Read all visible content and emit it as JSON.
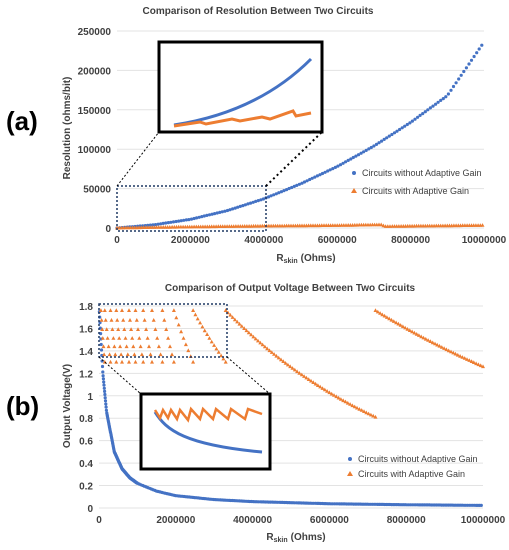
{
  "chart_data": [
    {
      "panel_label": "(a)",
      "type": "scatter",
      "title": "Comparison of Resolution Between Two Circuits",
      "ylabel": "Resolution (ohms/bit)",
      "xlabel_main": "R",
      "xlabel_sub": "skin",
      "xlabel_unit": "(Ohms)",
      "xlim": [
        0,
        10000000
      ],
      "ylim": [
        0,
        250000
      ],
      "xticks": [
        0,
        2000000,
        4000000,
        6000000,
        8000000,
        10000000
      ],
      "yticks": [
        0,
        50000,
        100000,
        150000,
        200000,
        250000
      ],
      "xtick_labels": [
        "0",
        "2000000",
        "4000000",
        "6000000",
        "8000000",
        "10000000"
      ],
      "ytick_labels": [
        "0",
        "50000",
        "100000",
        "150000",
        "200000",
        "250000"
      ],
      "zoom_region": {
        "x": [
          0,
          4000000
        ],
        "y": [
          0,
          50000
        ]
      },
      "legend_position": "right",
      "series": [
        {
          "name": "Circuits without Adaptive Gain",
          "color": "#4472C4",
          "marker": "circle",
          "x": [
            0,
            1000000,
            2000000,
            3000000,
            4000000,
            5000000,
            6000000,
            7000000,
            8000000,
            9000000,
            10000000
          ],
          "y": [
            0,
            4000,
            11000,
            22000,
            37000,
            56000,
            78000,
            104000,
            134000,
            168000,
            236000
          ]
        },
        {
          "name": "Circuits with Adaptive Gain",
          "color": "#ED7D31",
          "marker": "triangle",
          "x": [
            0,
            1000000,
            2000000,
            3000000,
            4000000,
            5000000,
            6000000,
            7200000,
            7300000,
            8000000,
            9000000,
            10000000
          ],
          "y": [
            0,
            800,
            1400,
            2000,
            2500,
            2900,
            3300,
            4200,
            2000,
            2400,
            2900,
            3400
          ]
        }
      ]
    },
    {
      "panel_label": "(b)",
      "type": "scatter",
      "title": "Comparison of Output Voltage Between Two Circuits",
      "ylabel": "Output Voltage(V)",
      "xlabel_main": "R",
      "xlabel_sub": "skin",
      "xlabel_unit": "(Ohms)",
      "xlim": [
        0,
        10000000
      ],
      "ylim": [
        0,
        1.8
      ],
      "xticks": [
        0,
        2000000,
        4000000,
        6000000,
        8000000,
        10000000
      ],
      "yticks": [
        0,
        0.2,
        0.4,
        0.6,
        0.8,
        1,
        1.2,
        1.4,
        1.6,
        1.8
      ],
      "xtick_labels": [
        "0",
        "2000000",
        "4000000",
        "6000000",
        "8000000",
        "10000000"
      ],
      "ytick_labels": [
        "0",
        "0.2",
        "0.4",
        "0.6",
        "0.8",
        "1",
        "1.2",
        "1.4",
        "1.6",
        "1.8"
      ],
      "zoom_region": {
        "x": [
          0,
          3300000
        ],
        "y": [
          1.34,
          1.82
        ]
      },
      "legend_position": "bottom-right",
      "series": [
        {
          "name": "Circuits without Adaptive Gain",
          "color": "#4472C4",
          "marker": "circle",
          "x": [
            10000,
            100000,
            200000,
            400000,
            600000,
            800000,
            1000000,
            1500000,
            2000000,
            3000000,
            4000000,
            6000000,
            8000000,
            10000000
          ],
          "y": [
            1.75,
            1.2,
            0.85,
            0.5,
            0.35,
            0.27,
            0.22,
            0.15,
            0.11,
            0.075,
            0.057,
            0.038,
            0.029,
            0.023
          ]
        },
        {
          "name": "Circuits with Adaptive Gain",
          "color": "#ED7D31",
          "marker": "triangle",
          "sawtooth": [
            [
              50000,
              150000
            ],
            [
              150000,
              300000
            ],
            [
              300000,
              450000
            ],
            [
              450000,
              600000
            ],
            [
              600000,
              780000
            ],
            [
              780000,
              950000
            ],
            [
              950000,
              1150000
            ],
            [
              1150000,
              1380000
            ],
            [
              1380000,
              1650000
            ],
            [
              1650000,
              1950000
            ],
            [
              1950000,
              2450000
            ],
            [
              2450000,
              3300000
            ],
            [
              3300000,
              7200000
            ],
            [
              7200000,
              10000000
            ]
          ],
          "sawtooth_y": [
            1.76,
            1.3
          ]
        }
      ]
    }
  ]
}
